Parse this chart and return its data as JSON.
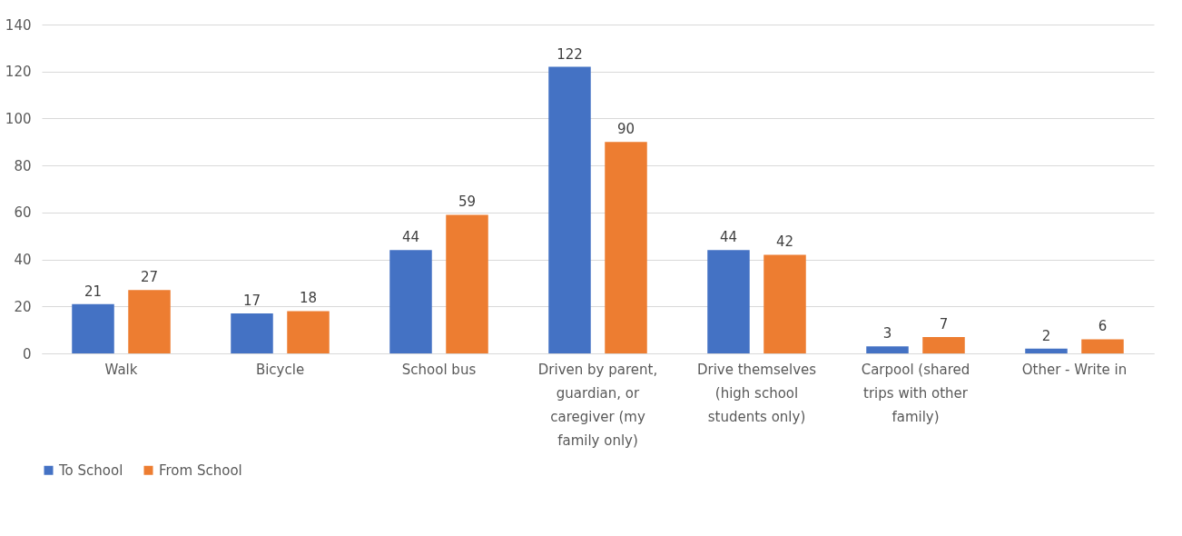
{
  "chart_data": {
    "type": "bar",
    "categories": [
      "Walk",
      "Bicycle",
      "School bus",
      "Driven by parent, guardian, or caregiver (my family only)",
      "Drive themselves (high school students only)",
      "Carpool (shared trips with other family)",
      "Other - Write in"
    ],
    "series": [
      {
        "name": "To School",
        "color": "#4472c4",
        "values": [
          21,
          17,
          44,
          122,
          44,
          3,
          2
        ]
      },
      {
        "name": "From School",
        "color": "#ed7d31",
        "values": [
          27,
          18,
          59,
          90,
          42,
          7,
          6
        ]
      }
    ],
    "ylim": [
      0,
      140
    ],
    "yticks": [
      0,
      20,
      40,
      60,
      80,
      100,
      120,
      140
    ],
    "grid": "y",
    "legend": "bottom",
    "data_labels": true
  }
}
